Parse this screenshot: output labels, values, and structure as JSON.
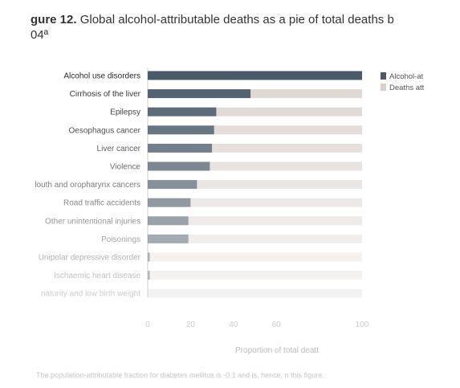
{
  "figure": {
    "label": "gure 12.",
    "title": "Global alcohol-attributable deaths as a pie of total deaths b\n04ª"
  },
  "footnote": "The population-attributable fraction for diabetes mellitus is -0.1 and is, hence, n this figure.",
  "colors": {
    "alcohol": "#4a5a6a",
    "other": "#d9d0cb",
    "axis": "#cfcfcf"
  },
  "chart_data": {
    "type": "bar",
    "orientation": "horizontal",
    "stacked": true,
    "categories": [
      "Alcohol use disorders",
      "Cirrhosis of the liver",
      "Epilepsy",
      "Oesophagus cancer",
      "Liver cancer",
      "Violence",
      "louth and oropharynx cancers",
      "Road traffic accidents",
      "Other unintentional injuries",
      "Poisonings",
      "Unipolar depressive disorder",
      "Ischaemic heart disease",
      "naturity and low birth weight"
    ],
    "series": [
      {
        "name": "Alcohol-at",
        "values": [
          100,
          48,
          32,
          31,
          30,
          29,
          23,
          20,
          19,
          19,
          1,
          1,
          0
        ]
      },
      {
        "name": "Deaths att",
        "values": [
          0,
          52,
          68,
          69,
          70,
          71,
          77,
          80,
          81,
          81,
          99,
          99,
          100
        ]
      }
    ],
    "xlabel": "Proportion of total deatt",
    "xticks": [
      0,
      20,
      40,
      60,
      100
    ],
    "xlim": [
      0,
      100
    ],
    "legend": "top-right"
  }
}
